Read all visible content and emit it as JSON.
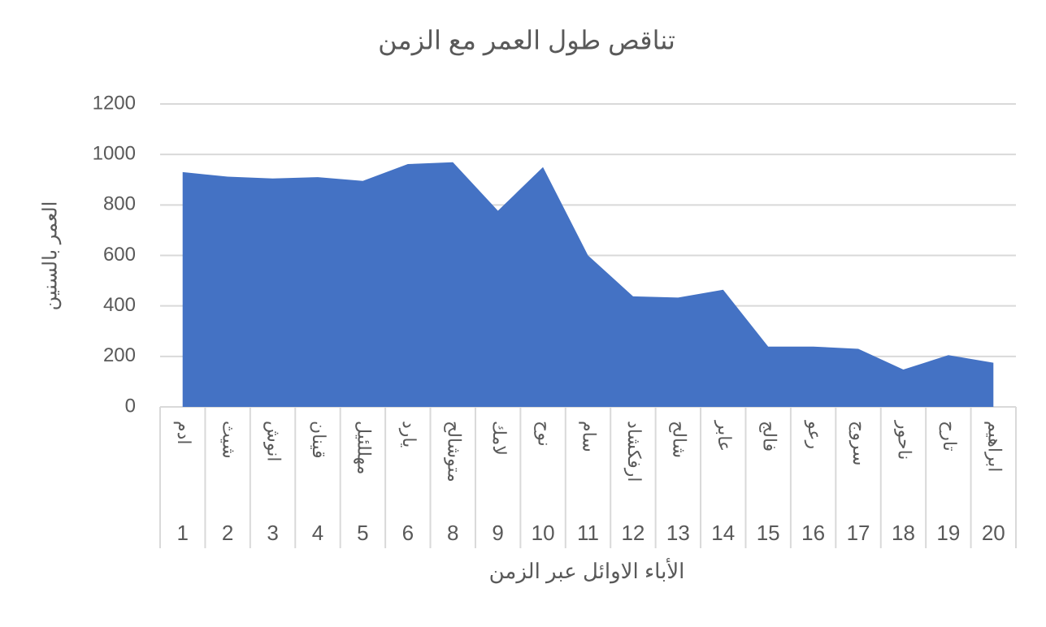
{
  "chart_data": {
    "type": "area",
    "title": "تناقص طول العمر مع الزمن",
    "x_label": "الأباء الاوائل عبر الزمن",
    "y_label": "العمر بالسنين",
    "categories": [
      "1",
      "2",
      "3",
      "4",
      "5",
      "6",
      "8",
      "9",
      "10",
      "11",
      "12",
      "13",
      "14",
      "15",
      "16",
      "17",
      "18",
      "19",
      "20"
    ],
    "names": [
      "ادم",
      "شيث",
      "انوش",
      "قينان",
      "مهللئيل",
      "يارد",
      "متوشالح",
      "لامك",
      "نوح",
      "سام",
      "ارفكشاد",
      "شالح",
      "عابر",
      "فالج",
      "رعو",
      "سروج",
      "ناحور",
      "تارح",
      "ابراهيم"
    ],
    "values": [
      930,
      912,
      905,
      910,
      895,
      962,
      969,
      777,
      950,
      600,
      438,
      433,
      464,
      239,
      239,
      230,
      148,
      205,
      175
    ],
    "color": "#4472c4",
    "ylim": [
      0,
      1200
    ],
    "yticks": [
      0,
      200,
      400,
      600,
      800,
      1000,
      1200
    ],
    "grid": true
  }
}
